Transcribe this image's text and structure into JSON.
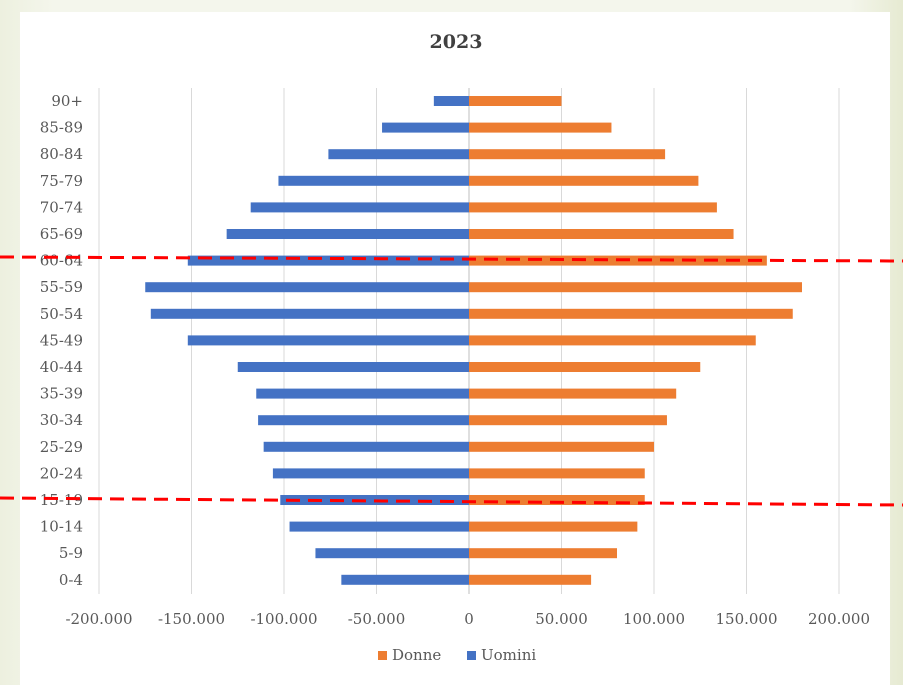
{
  "chart_data": {
    "type": "bar",
    "orientation": "horizontal",
    "title": "2023",
    "categories": [
      "0-4",
      "5-9",
      "10-14",
      "15-19",
      "20-24",
      "25-29",
      "30-34",
      "35-39",
      "40-44",
      "45-49",
      "50-54",
      "55-59",
      "60-64",
      "65-69",
      "70-74",
      "75-79",
      "80-84",
      "85-89",
      "90+"
    ],
    "series": [
      {
        "name": "Donne",
        "color": "#ed7d31",
        "values": [
          66000,
          80000,
          91000,
          95000,
          95000,
          100000,
          107000,
          112000,
          125000,
          155000,
          175000,
          180000,
          161000,
          143000,
          134000,
          124000,
          106000,
          77000,
          50000
        ]
      },
      {
        "name": "Uomini",
        "color": "#4472c4",
        "values": [
          -69000,
          -83000,
          -97000,
          -102000,
          -106000,
          -111000,
          -114000,
          -115000,
          -125000,
          -152000,
          -172000,
          -175000,
          -152000,
          -131000,
          -118000,
          -103000,
          -76000,
          -47000,
          -19000
        ]
      }
    ],
    "xlim": [
      -200000,
      200000
    ],
    "x_ticks": [
      -200000,
      -150000,
      -100000,
      -50000,
      0,
      50000,
      100000,
      150000,
      200000
    ],
    "x_tick_labels": [
      "-200.000",
      "-150.000",
      "-100.000",
      "-50.000",
      "0",
      "50.000",
      "100.000",
      "150.000",
      "200.000"
    ],
    "grid": true,
    "legend_position": "bottom",
    "annotations": [
      {
        "type": "dashed-line",
        "color": "#ff0000",
        "near_category": "60-64"
      },
      {
        "type": "dashed-line",
        "color": "#ff0000",
        "near_category": "15-19"
      }
    ]
  }
}
